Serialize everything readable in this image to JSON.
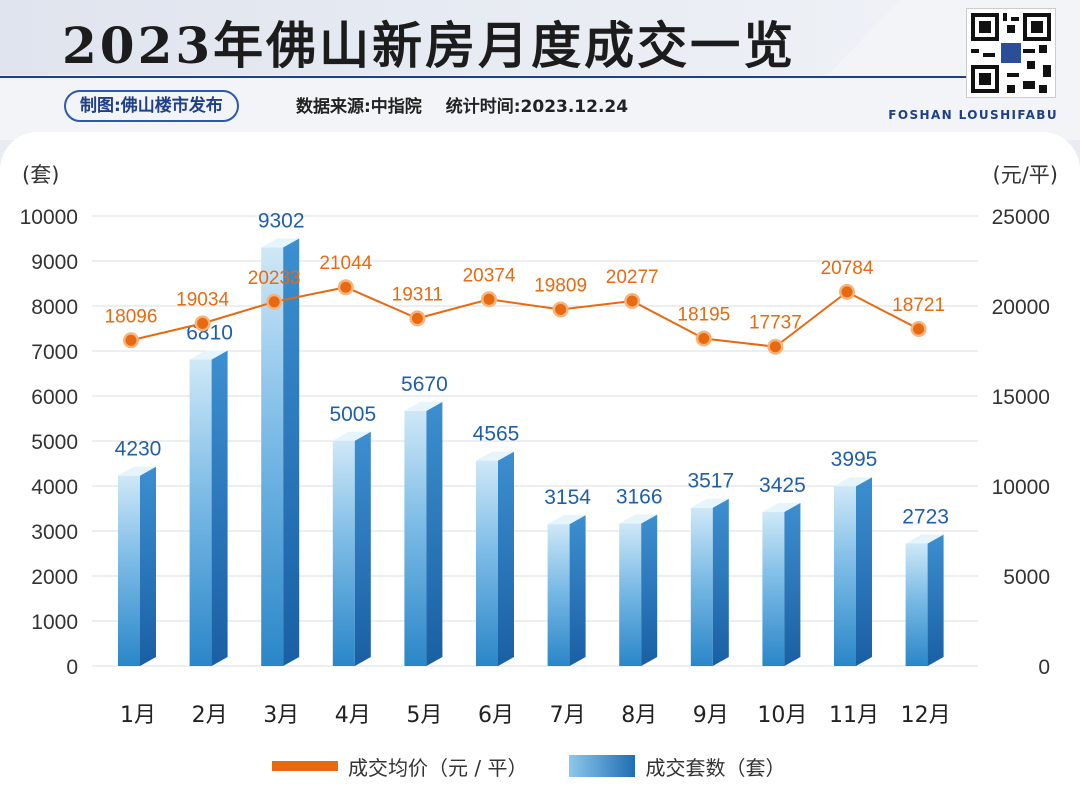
{
  "header": {
    "title": "2023年佛山新房月度成交一览",
    "publisher": "制图:佛山楼市发布",
    "source": "数据来源:中指院",
    "stat_time": "统计时间:2023.12.24",
    "brand": "FOSHAN LOUSHIFABU",
    "qr_icon": "qr-code-icon"
  },
  "colors": {
    "bar_light": "#8ec8ec",
    "bar_dark": "#1f6db4",
    "line": "#e86a10",
    "label_blue": "#1f5fa8",
    "label_orange": "#e86a10"
  },
  "chart_data": {
    "type": "bar",
    "categories": [
      "1月",
      "2月",
      "3月",
      "4月",
      "5月",
      "6月",
      "7月",
      "8月",
      "9月",
      "10月",
      "11月",
      "12月"
    ],
    "series": [
      {
        "name": "成交套数（套）",
        "type": "bar",
        "axis": "left",
        "values": [
          4230,
          6810,
          9302,
          5005,
          5670,
          4565,
          3154,
          3166,
          3517,
          3425,
          3995,
          2723
        ]
      },
      {
        "name": "成交均价（元 / 平）",
        "type": "line",
        "axis": "right",
        "values": [
          18096,
          19034,
          20233,
          21044,
          19311,
          20374,
          19809,
          20277,
          18195,
          17737,
          20784,
          18721
        ]
      }
    ],
    "ylabel": "(套)",
    "ylabel_right": "(元/平)",
    "ylim": [
      0,
      10000
    ],
    "ylim_right": [
      0,
      25000
    ],
    "yticks": [
      0,
      1000,
      2000,
      3000,
      4000,
      5000,
      6000,
      7000,
      8000,
      9000,
      10000
    ],
    "yticks_right": [
      0,
      5000,
      10000,
      15000,
      20000,
      25000
    ],
    "grid": true,
    "legend": "bottom"
  }
}
